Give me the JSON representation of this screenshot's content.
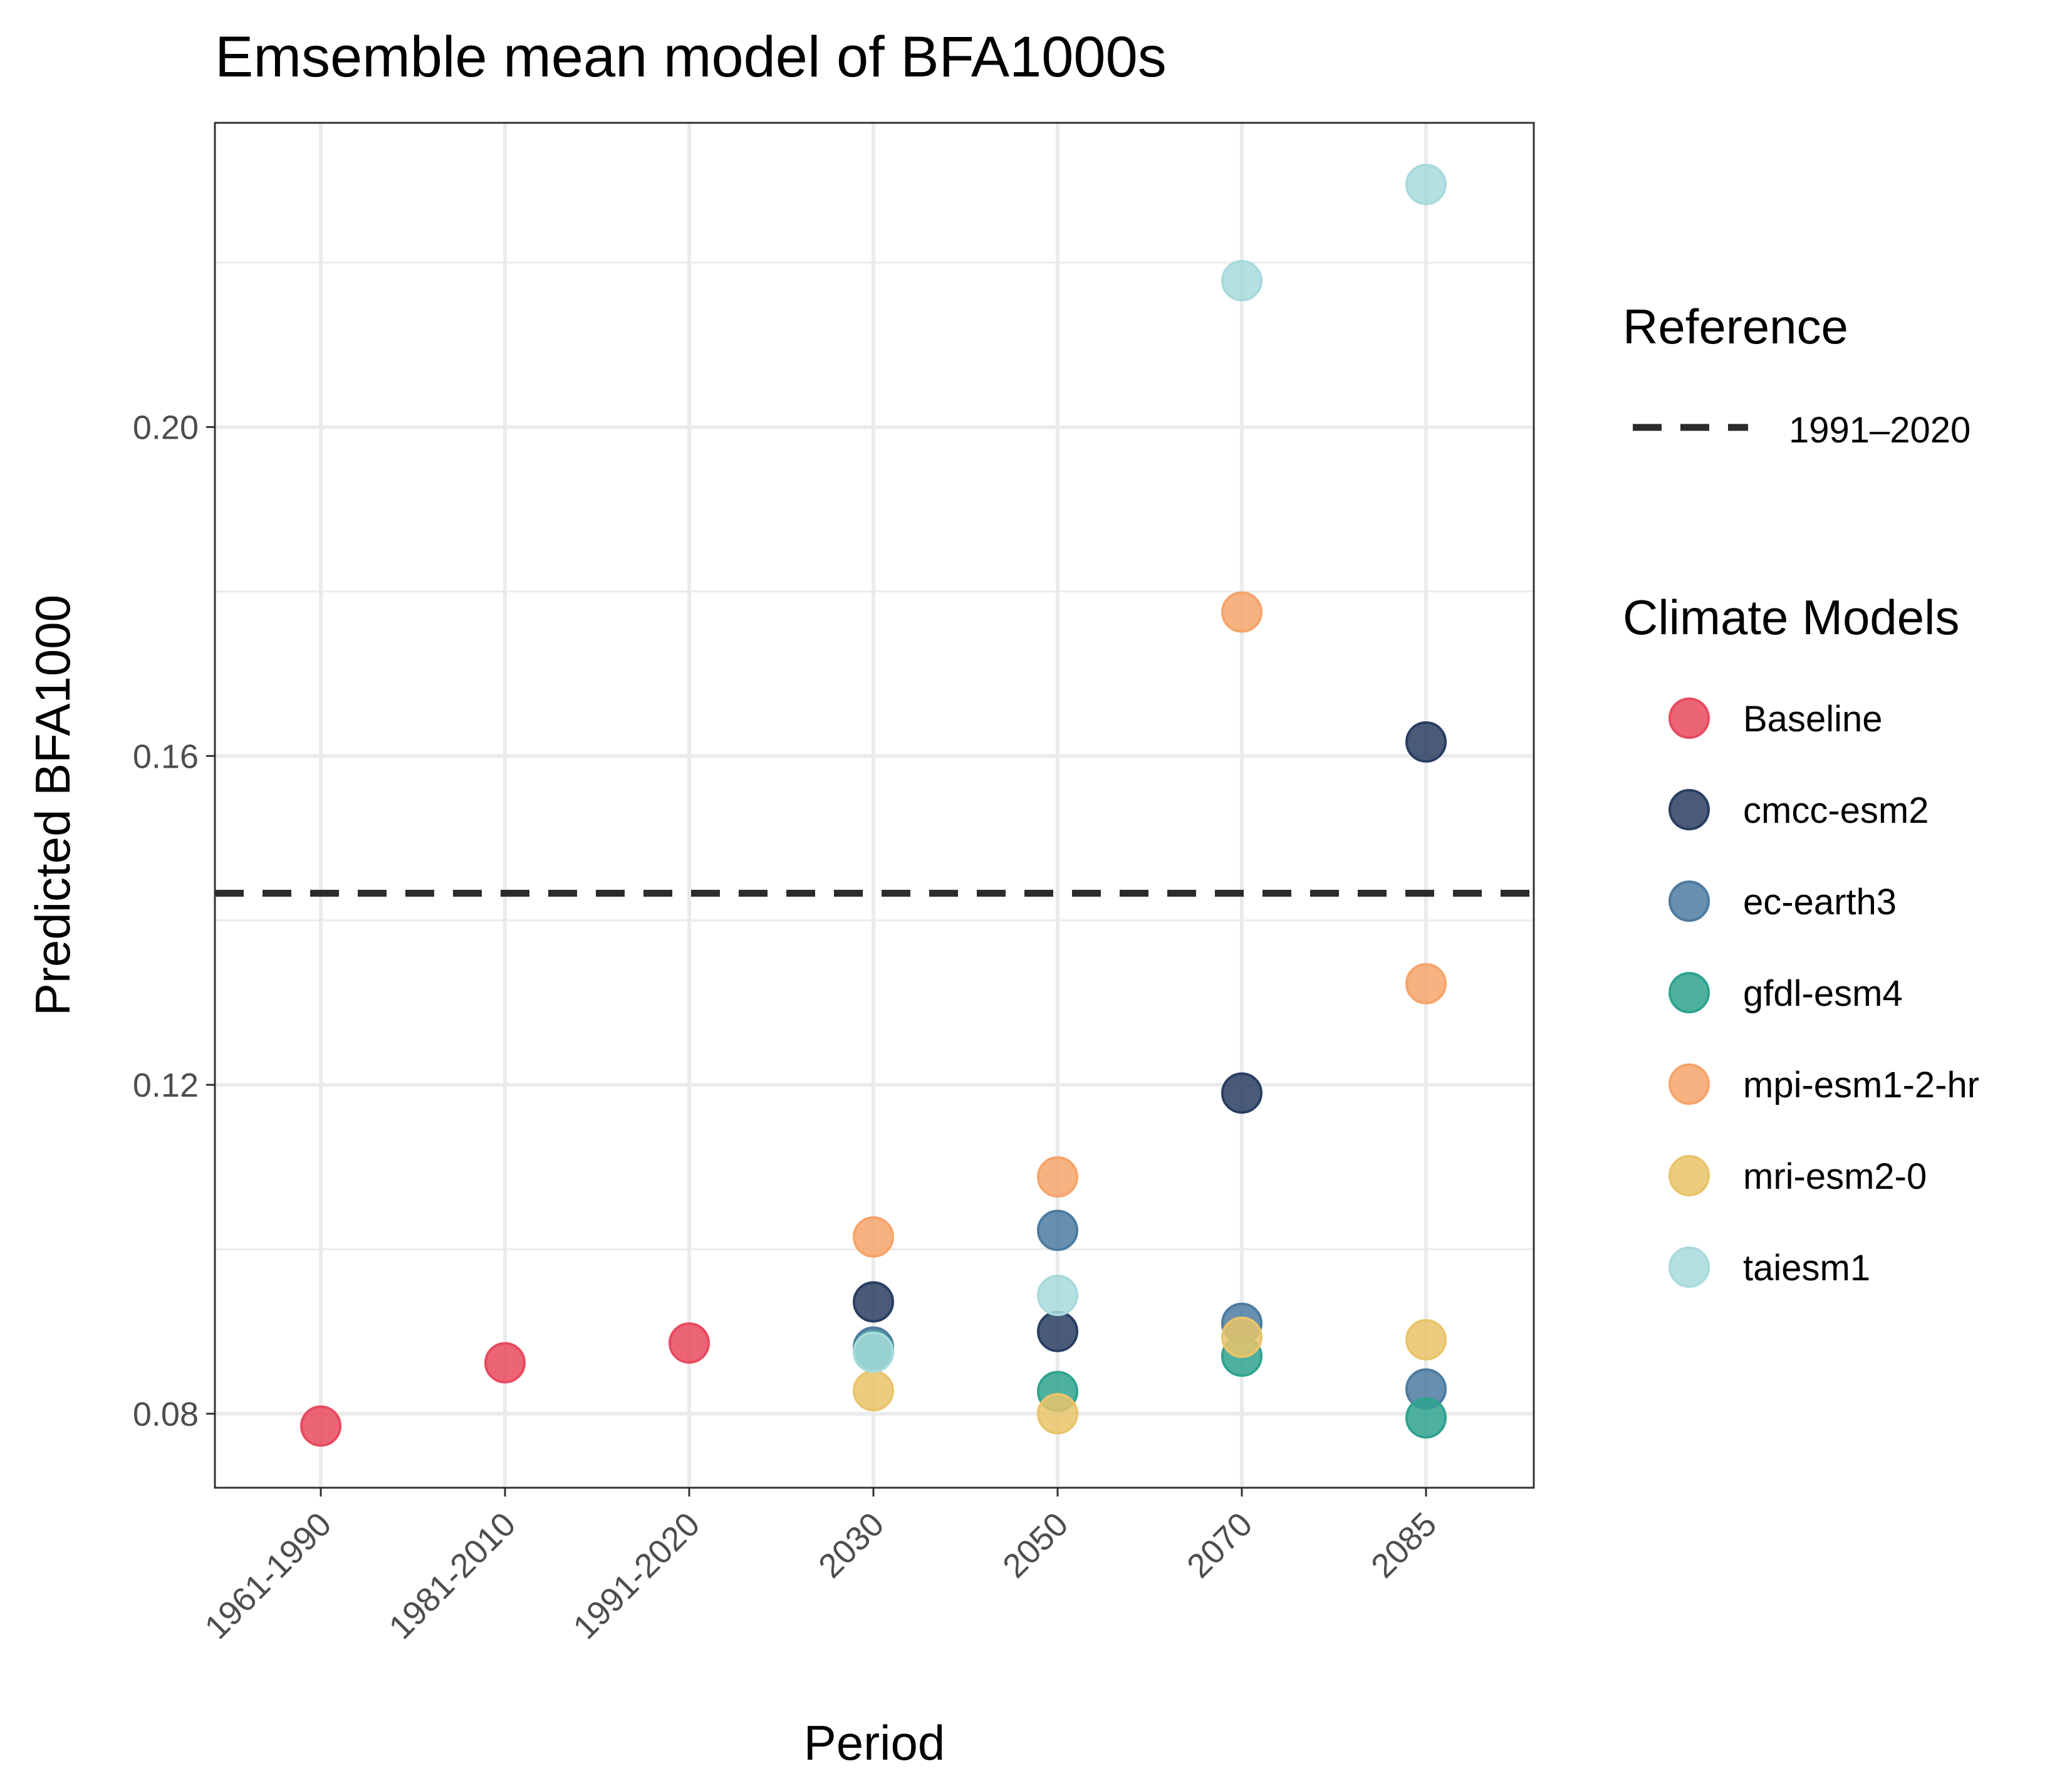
{
  "chart_data": {
    "type": "scatter",
    "title": "Emsemble mean model of BFA1000s",
    "xlabel": "Period",
    "ylabel": "Predicted BFA1000",
    "categories": [
      "1961-1990",
      "1981-2010",
      "1991-2020",
      "2030",
      "2050",
      "2070",
      "2085"
    ],
    "ylim": [
      0.071,
      0.237
    ],
    "yticks": [
      0.08,
      0.12,
      0.16,
      0.2
    ],
    "ytick_labels": [
      "0.08",
      "0.12",
      "0.16",
      "0.20"
    ],
    "grid": true,
    "legend_placement": "right",
    "reference": {
      "legend_title": "Reference",
      "label": "1991–2020",
      "value": 0.1433,
      "style": "dashed",
      "color": "#2b2b2b"
    },
    "series_legend_title": "Climate Models",
    "series": [
      {
        "name": "Baseline",
        "color": "#E84A5F",
        "points": [
          [
            "1961-1990",
            0.0785
          ],
          [
            "1981-2010",
            0.0862
          ],
          [
            "1991-2020",
            0.0886
          ]
        ]
      },
      {
        "name": "cmcc-esm2",
        "color": "#2A3E63",
        "points": [
          [
            "2030",
            0.0936
          ],
          [
            "2050",
            0.09
          ],
          [
            "2070",
            0.119
          ],
          [
            "2085",
            0.1617
          ]
        ]
      },
      {
        "name": "ec-earth3",
        "color": "#4C7BA1",
        "points": [
          [
            "2030",
            0.0881
          ],
          [
            "2050",
            0.1023
          ],
          [
            "2070",
            0.091
          ],
          [
            "2085",
            0.083
          ]
        ]
      },
      {
        "name": "gfdl-esm4",
        "color": "#2FA38F",
        "points": [
          [
            "2030",
            0.0876
          ],
          [
            "2050",
            0.0827
          ],
          [
            "2070",
            0.087
          ],
          [
            "2085",
            0.0795
          ]
        ]
      },
      {
        "name": "mpi-esm1-2-hr",
        "color": "#F6A46B",
        "points": [
          [
            "2030",
            0.1015
          ],
          [
            "2050",
            0.1088
          ],
          [
            "2070",
            0.1775
          ],
          [
            "2085",
            0.1323
          ]
        ]
      },
      {
        "name": "mri-esm2-0",
        "color": "#E9C46A",
        "points": [
          [
            "2030",
            0.0828
          ],
          [
            "2050",
            0.08
          ],
          [
            "2070",
            0.0893
          ],
          [
            "2085",
            0.089
          ]
        ]
      },
      {
        "name": "taiesm1",
        "color": "#A8DADC",
        "points": [
          [
            "2030",
            0.0875
          ],
          [
            "2050",
            0.0944
          ],
          [
            "2070",
            0.2178
          ],
          [
            "2085",
            0.2295
          ]
        ]
      }
    ]
  }
}
